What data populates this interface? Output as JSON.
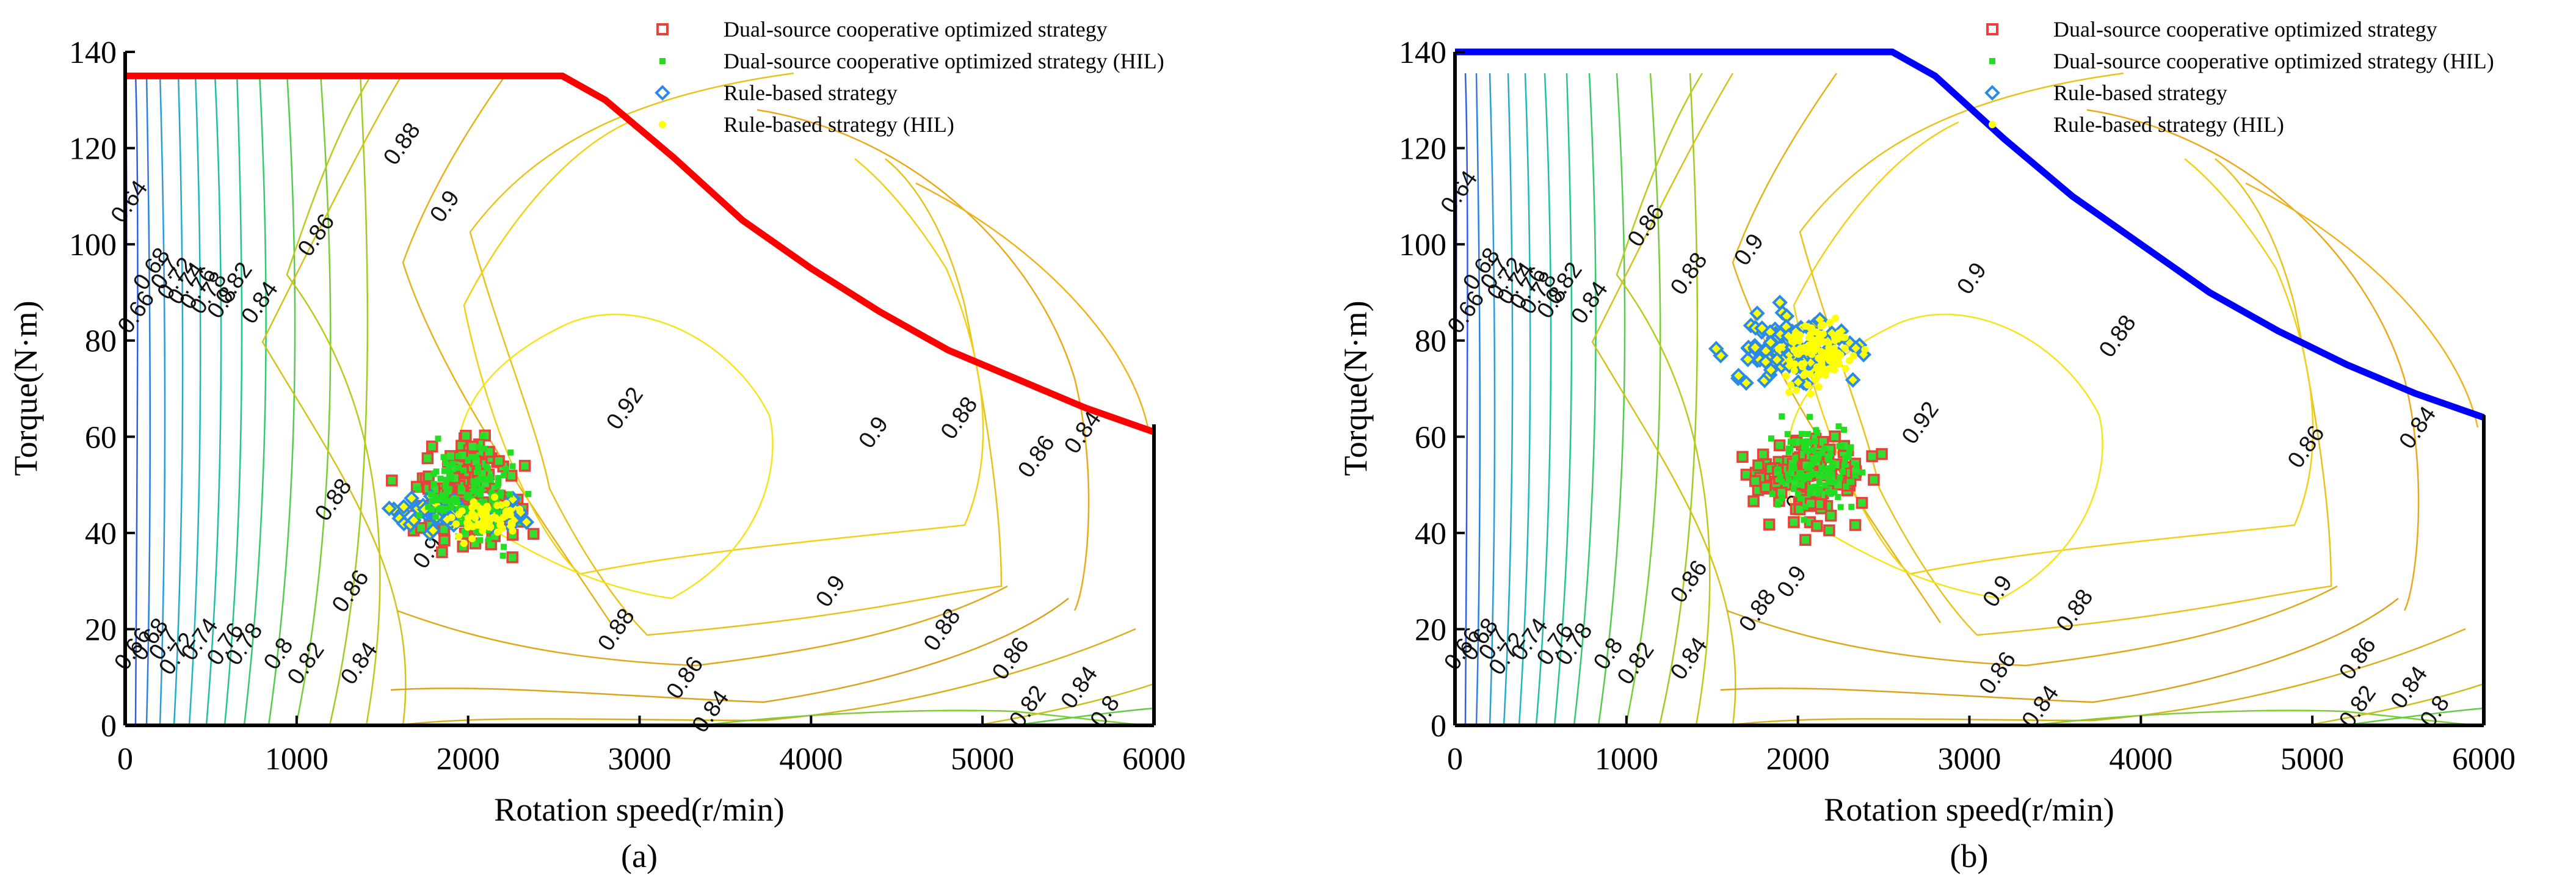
{
  "chart_data": [
    {
      "id": "a",
      "type": "scatter",
      "caption": "(a)",
      "xlabel": "Rotation speed(r/min)",
      "ylabel": "Torque(N·m)",
      "xlim": [
        0,
        6000
      ],
      "ylim": [
        0,
        140
      ],
      "xticks": [
        "0",
        "1000",
        "2000",
        "3000",
        "4000",
        "5000",
        "6000"
      ],
      "yticks": [
        "0",
        "20",
        "40",
        "60",
        "80",
        "100",
        "120",
        "140"
      ],
      "grid": false,
      "legend_position": "top-right",
      "legend": [
        "Dual-source cooperative optimized strategy",
        "Dual-source cooperative optimized strategy (HIL)",
        "Rule-based strategy",
        "Rule-based strategy (HIL)"
      ],
      "envelope_color": "#ff0000",
      "max_torque_envelope": {
        "x": [
          0,
          2550,
          2800,
          3200,
          3600,
          4000,
          4400,
          4800,
          5200,
          5600,
          6000
        ],
        "y": [
          135,
          135,
          130,
          118,
          105,
          95,
          86,
          78,
          72,
          66,
          61
        ]
      },
      "contour_labels": [
        {
          "text": "0.88",
          "x": 1650,
          "y": 120
        },
        {
          "text": "0.86",
          "x": 1150,
          "y": 101
        },
        {
          "text": "0.9",
          "x": 1900,
          "y": 107
        },
        {
          "text": "0.92",
          "x": 2950,
          "y": 65
        },
        {
          "text": "0.92",
          "x": 1950,
          "y": 45
        },
        {
          "text": "0.9",
          "x": 4400,
          "y": 60
        },
        {
          "text": "0.88",
          "x": 4900,
          "y": 63
        },
        {
          "text": "0.86",
          "x": 5350,
          "y": 55
        },
        {
          "text": "0.84",
          "x": 5620,
          "y": 60
        },
        {
          "text": "0.88",
          "x": 1250,
          "y": 46
        },
        {
          "text": "0.9",
          "x": 1800,
          "y": 35
        },
        {
          "text": "0.86",
          "x": 1350,
          "y": 27
        },
        {
          "text": "0.84",
          "x": 1400,
          "y": 12
        },
        {
          "text": "0.9",
          "x": 4150,
          "y": 27
        },
        {
          "text": "0.88",
          "x": 2900,
          "y": 19
        },
        {
          "text": "0.88",
          "x": 4800,
          "y": 19
        },
        {
          "text": "0.86",
          "x": 3300,
          "y": 9
        },
        {
          "text": "0.86",
          "x": 5200,
          "y": 13
        },
        {
          "text": "0.84",
          "x": 3450,
          "y": 2
        },
        {
          "text": "0.84",
          "x": 5600,
          "y": 7
        },
        {
          "text": "0.82",
          "x": 5300,
          "y": 3
        },
        {
          "text": "0.8",
          "x": 5750,
          "y": 2
        },
        {
          "text": "0.64",
          "x": 60,
          "y": 108
        },
        {
          "text": "0.66",
          "x": 100,
          "y": 85
        },
        {
          "text": "0.68",
          "x": 190,
          "y": 94
        },
        {
          "text": "0.7",
          "x": 270,
          "y": 93
        },
        {
          "text": "0.72",
          "x": 330,
          "y": 92
        },
        {
          "text": "0.74",
          "x": 390,
          "y": 91
        },
        {
          "text": "0.76",
          "x": 460,
          "y": 90
        },
        {
          "text": "0.78",
          "x": 520,
          "y": 89
        },
        {
          "text": "0.8",
          "x": 600,
          "y": 87
        },
        {
          "text": "0.82",
          "x": 670,
          "y": 91
        },
        {
          "text": "0.84",
          "x": 820,
          "y": 87
        },
        {
          "text": "0.66",
          "x": 80,
          "y": 15
        },
        {
          "text": "0.68",
          "x": 180,
          "y": 17
        },
        {
          "text": "0.7",
          "x": 260,
          "y": 16
        },
        {
          "text": "0.72",
          "x": 340,
          "y": 14
        },
        {
          "text": "0.74",
          "x": 470,
          "y": 17
        },
        {
          "text": "0.76",
          "x": 620,
          "y": 16
        },
        {
          "text": "0.78",
          "x": 730,
          "y": 16
        },
        {
          "text": "0.8",
          "x": 930,
          "y": 14
        },
        {
          "text": "0.82",
          "x": 1090,
          "y": 12
        }
      ],
      "clusters": {
        "optimized": {
          "cx": 2000,
          "cy": 48,
          "rx": 300,
          "ry": 11,
          "points": 160,
          "seed": 11
        },
        "optimized_hil": {
          "cx": 2000,
          "cy": 48,
          "rx": 280,
          "ry": 10,
          "points": 130,
          "seed": 12
        },
        "rule": {
          "cx": 1930,
          "cy": 44,
          "rx": 380,
          "ry": 3.5,
          "points": 70,
          "seed": 13
        },
        "rule_hil": {
          "cx": 2100,
          "cy": 43,
          "rx": 180,
          "ry": 4,
          "points": 60,
          "seed": 14
        }
      }
    },
    {
      "id": "b",
      "type": "scatter",
      "caption": "(b)",
      "xlabel": "Rotation speed(r/min)",
      "ylabel": "Torque(N·m)",
      "xlim": [
        0,
        6000
      ],
      "ylim": [
        0,
        140
      ],
      "xticks": [
        "0",
        "1000",
        "2000",
        "3000",
        "4000",
        "5000",
        "6000"
      ],
      "yticks": [
        "0",
        "20",
        "40",
        "60",
        "80",
        "100",
        "120",
        "140"
      ],
      "grid": false,
      "legend_position": "top-right",
      "legend": [
        "Dual-source cooperative optimized strategy",
        "Dual-source cooperative optimized strategy (HIL)",
        "Rule-based strategy",
        "Rule-based strategy (HIL)"
      ],
      "envelope_color": "#0000ff",
      "max_torque_envelope": {
        "x": [
          0,
          2550,
          2800,
          3200,
          3600,
          4000,
          4400,
          4800,
          5200,
          5600,
          6000
        ],
        "y": [
          140,
          140,
          135,
          122,
          110,
          100,
          90,
          82,
          75,
          69,
          64
        ]
      },
      "contour_labels": [
        {
          "text": "0.88",
          "x": 1400,
          "y": 93
        },
        {
          "text": "0.9",
          "x": 1750,
          "y": 98
        },
        {
          "text": "0.86",
          "x": 1150,
          "y": 103
        },
        {
          "text": "0.9",
          "x": 3050,
          "y": 92
        },
        {
          "text": "0.88",
          "x": 3900,
          "y": 80
        },
        {
          "text": "0.92",
          "x": 2750,
          "y": 62
        },
        {
          "text": "0.86",
          "x": 5000,
          "y": 57
        },
        {
          "text": "0.84",
          "x": 5650,
          "y": 61
        },
        {
          "text": "0.9",
          "x": 2050,
          "y": 47
        },
        {
          "text": "0.9",
          "x": 2000,
          "y": 29
        },
        {
          "text": "0.86",
          "x": 1400,
          "y": 29
        },
        {
          "text": "0.84",
          "x": 1400,
          "y": 13
        },
        {
          "text": "0.88",
          "x": 1800,
          "y": 23
        },
        {
          "text": "0.9",
          "x": 3200,
          "y": 27
        },
        {
          "text": "0.88",
          "x": 3650,
          "y": 23
        },
        {
          "text": "0.86",
          "x": 3200,
          "y": 10
        },
        {
          "text": "0.86",
          "x": 5300,
          "y": 13
        },
        {
          "text": "0.84",
          "x": 3450,
          "y": 3
        },
        {
          "text": "0.84",
          "x": 5600,
          "y": 7
        },
        {
          "text": "0.82",
          "x": 5300,
          "y": 3
        },
        {
          "text": "0.8",
          "x": 5750,
          "y": 2
        },
        {
          "text": "0.64",
          "x": 60,
          "y": 110
        },
        {
          "text": "0.66",
          "x": 100,
          "y": 85
        },
        {
          "text": "0.68",
          "x": 190,
          "y": 94
        },
        {
          "text": "0.7",
          "x": 270,
          "y": 93
        },
        {
          "text": "0.72",
          "x": 330,
          "y": 92
        },
        {
          "text": "0.74",
          "x": 390,
          "y": 91
        },
        {
          "text": "0.76",
          "x": 460,
          "y": 90
        },
        {
          "text": "0.78",
          "x": 520,
          "y": 89
        },
        {
          "text": "0.8",
          "x": 600,
          "y": 87
        },
        {
          "text": "0.82",
          "x": 670,
          "y": 91
        },
        {
          "text": "0.84",
          "x": 820,
          "y": 87
        },
        {
          "text": "0.66",
          "x": 80,
          "y": 15
        },
        {
          "text": "0.68",
          "x": 180,
          "y": 17
        },
        {
          "text": "0.7",
          "x": 260,
          "y": 16
        },
        {
          "text": "0.72",
          "x": 340,
          "y": 14
        },
        {
          "text": "0.74",
          "x": 470,
          "y": 17
        },
        {
          "text": "0.76",
          "x": 620,
          "y": 16
        },
        {
          "text": "0.78",
          "x": 730,
          "y": 16
        },
        {
          "text": "0.8",
          "x": 930,
          "y": 14
        },
        {
          "text": "0.82",
          "x": 1090,
          "y": 12
        }
      ],
      "clusters": {
        "optimized": {
          "cx": 2050,
          "cy": 52,
          "rx": 320,
          "ry": 10,
          "points": 130,
          "seed": 21
        },
        "optimized_hil": {
          "cx": 2100,
          "cy": 54,
          "rx": 250,
          "ry": 9,
          "points": 110,
          "seed": 22
        },
        "rule": {
          "cx": 1950,
          "cy": 79,
          "rx": 330,
          "ry": 8,
          "points": 110,
          "seed": 23
        },
        "rule_hil": {
          "cx": 2120,
          "cy": 77,
          "rx": 200,
          "ry": 7,
          "points": 110,
          "seed": 24
        }
      }
    }
  ]
}
